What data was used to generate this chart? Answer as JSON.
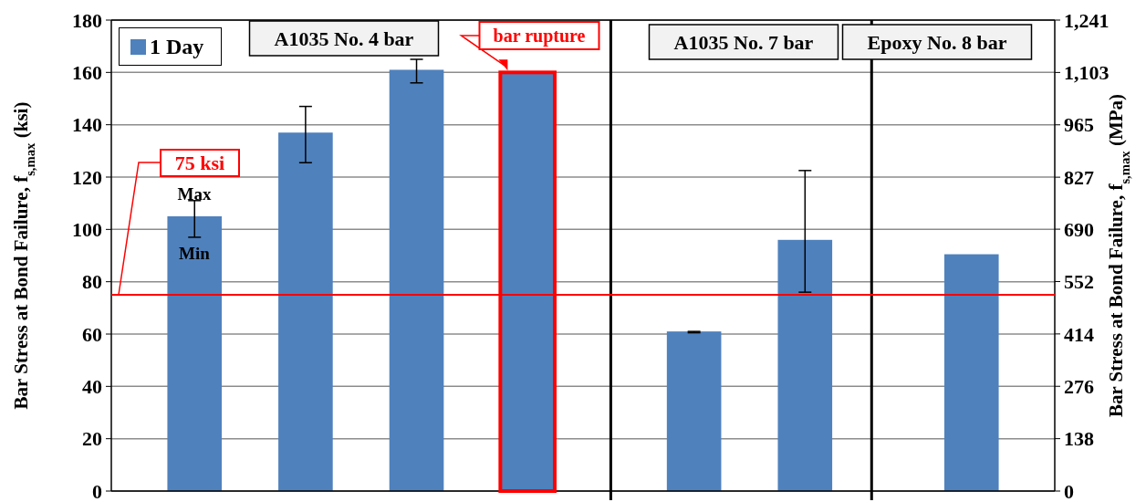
{
  "chart_data": {
    "type": "bar",
    "categories": [
      null,
      null,
      null,
      null,
      null,
      null,
      null,
      null,
      null,
      null,
      null,
      null,
      null,
      null,
      null,
      null,
      null
    ],
    "series": [
      {
        "name": "1 Day",
        "color": "#4f81bd",
        "values": [
          null,
          105,
          null,
          137,
          null,
          161,
          null,
          160,
          null,
          null,
          61,
          null,
          96,
          null,
          null,
          90.5,
          null
        ],
        "errors": [
          null,
          [
            97,
            111
          ],
          null,
          [
            125.5,
            147
          ],
          null,
          [
            156,
            165
          ],
          null,
          null,
          null,
          null,
          [
            60.5,
            61
          ],
          null,
          [
            76,
            122.5
          ],
          null,
          null,
          null,
          null
        ]
      }
    ],
    "ylabel": "Bar Stress at Bond Failure, f$_{s,max}$ (ksi)",
    "y2label": "Bar Stress at Bond Failure, f$_{s,max}$ (MPa)",
    "ylim": [
      0,
      180
    ],
    "yticks": [
      0,
      20,
      40,
      60,
      80,
      100,
      120,
      140,
      160,
      180
    ],
    "y2lim": [
      0,
      1241
    ],
    "y2ticks": [
      0,
      138,
      276,
      414,
      552,
      690,
      827,
      965,
      {
        "value": 1103,
        "label": "1,103"
      },
      {
        "value": 1241,
        "label": "1,241"
      }
    ],
    "grid": "y",
    "legend": "top left",
    "ref_lines": [
      {
        "axis": "y",
        "value": 75,
        "label": "75 ksi",
        "color": "#ff0000"
      }
    ],
    "annotations": [
      "A1035 No. 4 bar",
      "A1035 No. 7 bar",
      "Epoxy No. 8 bar",
      "Max",
      "Min",
      "bar rupture"
    ]
  }
}
